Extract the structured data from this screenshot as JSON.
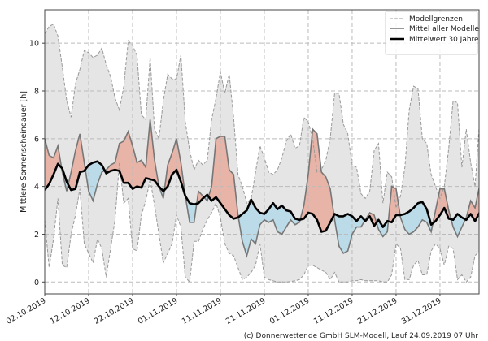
{
  "chart_data": {
    "type": "line",
    "title": "",
    "ylabel": "Mittlere Sonnenscheindauer [h]",
    "xlabel": "",
    "x_start": "02.10.2019",
    "x_step_days": 1,
    "xlim_days": [
      0,
      98.9
    ],
    "ylim": [
      -0.5,
      11.4
    ],
    "grid": true,
    "legend_position": "top-right",
    "xticks": [
      {
        "day": 0,
        "label": "02.10.2019"
      },
      {
        "day": 10,
        "label": "12.10.2019"
      },
      {
        "day": 20,
        "label": "22.10.2019"
      },
      {
        "day": 30,
        "label": "01.11.2019"
      },
      {
        "day": 40,
        "label": "11.11.2019"
      },
      {
        "day": 50,
        "label": "21.11.2019"
      },
      {
        "day": 60,
        "label": "01.12.2019"
      },
      {
        "day": 70,
        "label": "11.12.2019"
      },
      {
        "day": 80,
        "label": "21.12.2019"
      },
      {
        "day": 90,
        "label": "31.12.2019"
      }
    ],
    "yticks": [
      0,
      2,
      4,
      6,
      8,
      10
    ],
    "series": [
      {
        "name": "Modellgrenzen",
        "role": "upper",
        "values": [
          10.4,
          10.7,
          10.8,
          10.3,
          9.0,
          7.6,
          6.9,
          8.3,
          8.9,
          9.7,
          9.6,
          9.4,
          9.5,
          9.8,
          9.1,
          8.6,
          7.7,
          7.2,
          8.2,
          10.1,
          9.9,
          9.5,
          7.0,
          6.8,
          9.4,
          6.4,
          6.0,
          7.6,
          8.7,
          8.5,
          8.5,
          9.5,
          6.7,
          5.5,
          4.7,
          5.1,
          4.9,
          5.1,
          6.8,
          7.7,
          8.8,
          7.9,
          8.7,
          6.9,
          4.5,
          4.0,
          3.3,
          3.5,
          4.6,
          5.7,
          5.2,
          4.6,
          4.5,
          4.7,
          5.2,
          5.9,
          6.2,
          5.6,
          5.7,
          6.9,
          6.7,
          6.0,
          4.6,
          4.7,
          5.1,
          6.0,
          7.9,
          7.9,
          6.6,
          6.2,
          4.9,
          4.8,
          3.7,
          3.5,
          3.8,
          5.5,
          5.8,
          3.3,
          4.6,
          4.4,
          3.1,
          3.6,
          4.8,
          7.2,
          8.2,
          8.1,
          6.0,
          5.8,
          4.5,
          4.0,
          3.5,
          4.0,
          5.6,
          7.6,
          7.5,
          4.8,
          6.4,
          5.0,
          4.0,
          6.7
        ]
      },
      {
        "name": "Modellgrenzen",
        "role": "lower",
        "values": [
          2.6,
          0.6,
          1.8,
          3.5,
          0.7,
          0.6,
          2.0,
          2.8,
          3.9,
          1.6,
          1.2,
          0.8,
          1.8,
          1.4,
          0.2,
          1.4,
          2.6,
          5.0,
          3.3,
          3.5,
          1.4,
          1.3,
          2.8,
          3.4,
          4.3,
          3.2,
          2.0,
          0.8,
          1.2,
          1.6,
          2.8,
          2.3,
          0.2,
          0.0,
          1.7,
          1.7,
          2.2,
          2.6,
          2.9,
          3.3,
          2.7,
          1.6,
          1.2,
          1.1,
          0.6,
          0.1,
          0.2,
          0.4,
          0.7,
          1.6,
          0.2,
          0.1,
          0.05,
          0.0,
          0.0,
          0.0,
          0.02,
          0.05,
          0.1,
          0.3,
          0.7,
          0.7,
          0.6,
          0.5,
          0.4,
          0.1,
          0.4,
          0.0,
          0.0,
          0.0,
          0.05,
          0.05,
          0.1,
          0.05,
          0.05,
          0.05,
          0.05,
          0.0,
          0.0,
          0.3,
          1.6,
          1.4,
          0.1,
          0.1,
          0.7,
          0.9,
          0.3,
          0.3,
          1.3,
          1.6,
          1.4,
          0.7,
          1.5,
          1.4,
          0.1,
          0.3,
          0.0,
          0.2,
          1.1,
          1.3
        ]
      },
      {
        "name": "Mittel aller Modelle",
        "role": "model_mean",
        "values": [
          6.0,
          5.3,
          5.2,
          5.7,
          4.6,
          3.8,
          4.6,
          5.5,
          6.2,
          5.0,
          3.8,
          3.4,
          4.1,
          4.6,
          4.7,
          4.9,
          5.0,
          5.8,
          5.9,
          6.3,
          5.7,
          5.0,
          5.1,
          4.8,
          6.8,
          5.1,
          4.0,
          3.5,
          4.9,
          5.4,
          6.0,
          5.0,
          3.6,
          2.5,
          2.5,
          3.8,
          3.6,
          3.4,
          4.0,
          6.0,
          6.1,
          6.1,
          4.7,
          4.5,
          2.8,
          1.7,
          1.1,
          1.8,
          1.6,
          2.4,
          2.6,
          2.5,
          2.6,
          2.1,
          2.0,
          2.3,
          2.6,
          2.4,
          2.5,
          3.2,
          4.5,
          6.4,
          6.2,
          4.6,
          4.4,
          3.9,
          2.6,
          1.5,
          1.2,
          1.3,
          2.0,
          2.3,
          2.3,
          2.6,
          2.9,
          2.8,
          2.2,
          1.9,
          2.1,
          4.0,
          3.9,
          2.7,
          2.2,
          2.0,
          2.1,
          2.3,
          2.6,
          2.5,
          2.1,
          3.0,
          3.9,
          3.9,
          3.0,
          2.3,
          1.9,
          2.3,
          2.7,
          3.4,
          3.1,
          4.0
        ]
      },
      {
        "name": "Mittelwert 30 Jahre",
        "role": "climate_mean",
        "values": [
          3.85,
          4.1,
          4.5,
          4.95,
          4.75,
          4.2,
          3.85,
          3.9,
          4.6,
          4.65,
          4.9,
          5.0,
          5.05,
          4.9,
          4.55,
          4.65,
          4.7,
          4.65,
          4.15,
          4.15,
          3.9,
          4.0,
          3.95,
          4.35,
          4.3,
          4.25,
          4.0,
          3.8,
          4.0,
          4.5,
          4.7,
          4.2,
          3.6,
          3.3,
          3.25,
          3.3,
          3.5,
          3.65,
          3.4,
          3.55,
          3.3,
          3.05,
          2.8,
          2.65,
          2.7,
          2.85,
          3.0,
          3.45,
          3.1,
          2.9,
          2.85,
          3.05,
          3.3,
          3.05,
          3.2,
          3.0,
          2.95,
          2.65,
          2.6,
          2.65,
          2.9,
          2.85,
          2.6,
          2.1,
          2.15,
          2.5,
          2.85,
          2.75,
          2.75,
          2.85,
          2.75,
          2.55,
          2.75,
          2.55,
          2.75,
          2.35,
          2.6,
          2.3,
          2.55,
          2.5,
          2.8,
          2.8,
          2.85,
          2.95,
          3.1,
          3.3,
          3.35,
          3.05,
          2.4,
          2.55,
          2.8,
          3.1,
          2.65,
          2.6,
          2.85,
          2.7,
          2.6,
          2.85,
          2.55,
          2.9
        ]
      }
    ],
    "legend": [
      "Modellgrenzen",
      "Mittel aller Modelle",
      "Mittelwert 30 Jahre"
    ],
    "annotation": "(c) Donnerwetter.de GmbH SLM-Modell, Lauf 24.09.2019 07 Uhr",
    "colors": {
      "band": "#e5e5e5",
      "bound_line": "#999999",
      "model_line": "#777777",
      "climate_line": "#000000",
      "above": "#e8b4a7",
      "below": "#bcdbe8"
    }
  }
}
